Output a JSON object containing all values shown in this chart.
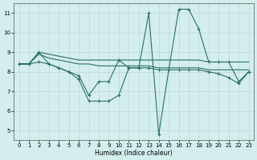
{
  "xlabel": "Humidex (Indice chaleur)",
  "bg_color": "#d4eeee",
  "grid_color": "#c0d8d8",
  "line_color": "#2a6e68",
  "xlim": [
    -0.5,
    23.5
  ],
  "ylim": [
    4.5,
    11.5
  ],
  "xticks": [
    0,
    1,
    2,
    3,
    4,
    5,
    6,
    7,
    8,
    9,
    10,
    11,
    12,
    13,
    14,
    15,
    16,
    17,
    18,
    19,
    20,
    21,
    22,
    23
  ],
  "yticks": [
    5,
    6,
    7,
    8,
    9,
    10,
    11
  ],
  "series": [
    {
      "x": [
        0,
        1,
        2,
        3,
        4,
        5,
        6,
        7,
        8,
        9,
        10,
        11,
        12,
        13,
        14,
        15,
        16,
        17,
        18,
        19,
        20,
        21,
        22,
        23
      ],
      "y": [
        8.4,
        8.4,
        9.0,
        8.9,
        8.8,
        8.7,
        8.6,
        8.6,
        8.6,
        8.6,
        8.6,
        8.6,
        8.6,
        8.6,
        8.6,
        8.6,
        8.6,
        8.6,
        8.6,
        8.5,
        8.5,
        8.5,
        8.5,
        8.5
      ],
      "marker": false
    },
    {
      "x": [
        0,
        1,
        2,
        3,
        4,
        5,
        6,
        7,
        8,
        9,
        10,
        11,
        12,
        13,
        14,
        15,
        16,
        17,
        18,
        19,
        20,
        21,
        22,
        23
      ],
      "y": [
        8.4,
        8.4,
        8.9,
        8.7,
        8.6,
        8.5,
        8.4,
        8.4,
        8.3,
        8.3,
        8.3,
        8.3,
        8.3,
        8.3,
        8.2,
        8.2,
        8.2,
        8.2,
        8.2,
        8.1,
        8.1,
        8.1,
        8.1,
        8.1
      ],
      "marker": false
    },
    {
      "x": [
        0,
        1,
        2,
        3,
        4,
        5,
        6,
        7,
        8,
        9,
        10,
        11,
        12,
        13,
        14,
        15,
        16,
        17,
        18,
        19,
        20,
        21,
        22,
        23
      ],
      "y": [
        8.4,
        8.4,
        8.5,
        8.4,
        8.2,
        8.0,
        7.8,
        6.8,
        7.5,
        7.5,
        8.6,
        8.2,
        8.2,
        8.2,
        8.1,
        8.1,
        8.1,
        8.1,
        8.1,
        8.0,
        7.9,
        7.7,
        7.4,
        8.0
      ],
      "marker": true
    },
    {
      "x": [
        0,
        1,
        2,
        3,
        4,
        5,
        6,
        7,
        8,
        9,
        10,
        11,
        12,
        13,
        14,
        15,
        16,
        17,
        18,
        19,
        20,
        21,
        22,
        23
      ],
      "y": [
        8.4,
        8.4,
        9.0,
        8.4,
        8.2,
        8.0,
        7.6,
        6.5,
        6.5,
        6.5,
        6.8,
        8.2,
        8.2,
        11.0,
        4.8,
        8.1,
        11.2,
        11.2,
        10.2,
        8.5,
        8.5,
        8.5,
        7.5,
        8.0
      ],
      "marker": true
    }
  ]
}
